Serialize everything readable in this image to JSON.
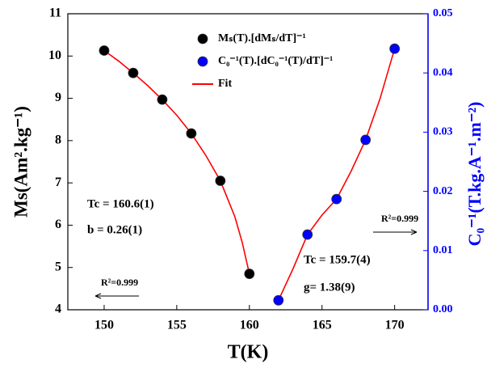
{
  "chart_data": {
    "type": "scatter",
    "x_label": "T(K)",
    "y_label": "Ms(Am².kg⁻¹)",
    "y2_label": "C₀⁻¹(T.kg.A⁻¹.m⁻²)",
    "y2_color": "#0000ff",
    "xlim": [
      147.5,
      172.3
    ],
    "xticks": [
      150,
      155,
      160,
      165,
      170
    ],
    "ylim": [
      4,
      11
    ],
    "yticks": [
      4,
      5,
      6,
      7,
      8,
      9,
      10,
      11
    ],
    "y2lim": [
      0,
      0.05
    ],
    "y2ticks": [
      {
        "value": 0,
        "label": "0.00"
      },
      0.01,
      0.02,
      0.03,
      0.04,
      0.05
    ],
    "series": [
      {
        "name": "Mₛ(T).[dMₛ/dT]⁻¹",
        "color": "#000000",
        "x": [
          150,
          152,
          154,
          156,
          158,
          160
        ],
        "values": [
          10.13,
          9.6,
          8.97,
          8.17,
          7.05,
          4.85
        ]
      },
      {
        "name": "C₀⁻¹(T).[dC₀⁻¹(T)/dT]⁻¹",
        "color": "#0000ff",
        "axis": "y2",
        "x": [
          162,
          164,
          166,
          168,
          170
        ],
        "values": [
          0.0016,
          0.0127,
          0.0187,
          0.0287,
          0.0441
        ]
      }
    ],
    "fit": {
      "name": "Fit",
      "color": "#ff0000",
      "segments": [
        {
          "x": [
            150,
            151,
            152,
            153,
            154,
            155,
            156,
            157,
            158,
            159,
            159.5,
            160
          ],
          "values": [
            10.13,
            9.88,
            9.6,
            9.3,
            8.97,
            8.6,
            8.17,
            7.65,
            7.05,
            6.2,
            5.6,
            4.85
          ]
        },
        {
          "axis": "y2",
          "x": [
            162,
            163,
            164,
            165,
            166,
            167,
            168,
            169,
            170
          ],
          "values": [
            0.0016,
            0.0069,
            0.0127,
            0.016,
            0.0187,
            0.0234,
            0.0287,
            0.0357,
            0.0441
          ]
        }
      ]
    },
    "annotations": [
      "Tc = 160.6(1)",
      "b = 0.26(1)",
      "R²=0.999",
      "R²=0.999",
      "Tc = 159.7(4)",
      "g= 1.38(9)"
    ]
  }
}
